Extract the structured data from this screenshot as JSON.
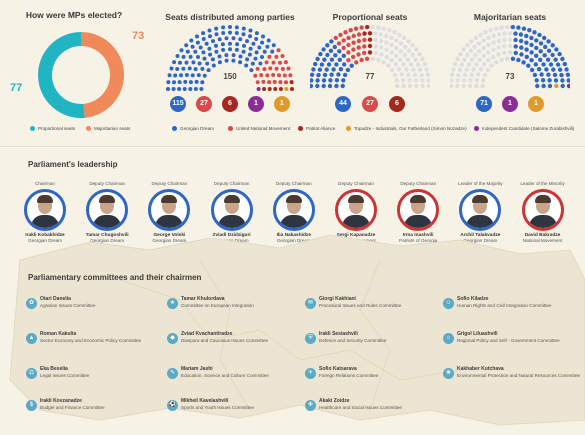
{
  "election": {
    "title": "How were MPs elected?",
    "prop_value": "77",
    "maj_value": "73",
    "legend_prop": "Proportional seats",
    "legend_maj": "Majoritarian seats",
    "colors": {
      "prop": "#21b5c3",
      "maj": "#f08a5a"
    }
  },
  "parties_chart": {
    "title": "Seats distributed among parties",
    "center": "150",
    "badges": [
      {
        "value": "115",
        "color": "#2e66c4"
      },
      {
        "value": "27",
        "color": "#d94a4a"
      },
      {
        "value": "6",
        "color": "#a5271f"
      },
      {
        "value": "1",
        "color": "#8a2e94"
      },
      {
        "value": "1",
        "color": "#e09a2c"
      }
    ],
    "seats": [
      115,
      27,
      6,
      1,
      1
    ]
  },
  "proportional_chart": {
    "title": "Proportional seats",
    "center": "77",
    "badges": [
      {
        "value": "44",
        "color": "#2e66c4"
      },
      {
        "value": "27",
        "color": "#d94a4a"
      },
      {
        "value": "6",
        "color": "#a5271f"
      }
    ],
    "seats": [
      44,
      27,
      6
    ]
  },
  "majoritarian_chart": {
    "title": "Majoritarian seats",
    "center": "73",
    "badges": [
      {
        "value": "71",
        "color": "#2e66c4"
      },
      {
        "value": "1",
        "color": "#8a2e94"
      },
      {
        "value": "1",
        "color": "#e09a2c"
      }
    ],
    "seats": [
      71,
      1,
      1
    ]
  },
  "party_legend": [
    {
      "label": "Georgian Dream",
      "color": "#2e66c4"
    },
    {
      "label": "United National Movement",
      "color": "#d94a4a"
    },
    {
      "label": "Patriot Aliance",
      "color": "#a5271f"
    },
    {
      "label": "Topadze - Industrials, Our Fatherland (Simon Nozadze)",
      "color": "#e09a2c"
    },
    {
      "label": "Independent Candidate (Salome Zurabishvili)",
      "color": "#8a2e94"
    }
  ],
  "leadership": {
    "title": "Parliament's leadership",
    "people": [
      {
        "role": "Chairman",
        "name": "Irakli Kobakhidze",
        "party": "Georgian Dream",
        "ring": "blue"
      },
      {
        "role": "Deputy Chairman",
        "name": "Tamar Chugoshvili",
        "party": "Georgian Dream",
        "ring": "blue"
      },
      {
        "role": "Deputy Chairman",
        "name": "George Volski",
        "party": "Georgian Dream",
        "ring": "blue"
      },
      {
        "role": "Deputy Chairman",
        "name": "Zviadi Dzidziguri",
        "party": "Georgian Dream",
        "ring": "blue"
      },
      {
        "role": "Deputy Chairman",
        "name": "Ilia Nakashidze",
        "party": "Georgian Dream",
        "ring": "blue"
      },
      {
        "role": "Deputy Chairman",
        "name": "Sergi Kapanadze",
        "party": "National Movement",
        "ring": "red"
      },
      {
        "role": "Deputy Chairman",
        "name": "Irma Inashvili",
        "party": "Patriots of Georgia",
        "ring": "red"
      },
      {
        "role": "Leader of the Majority",
        "name": "Archil Talakvadze",
        "party": "Georgian Dream",
        "ring": "blue"
      },
      {
        "role": "Leader of the Minority",
        "name": "David Bakradze",
        "party": "National Movement",
        "ring": "red"
      }
    ]
  },
  "committees": {
    "title": "Parliamentary committees and their chairmen",
    "items": [
      {
        "name": "Otari Danelia",
        "title": "Agrarian Issues Committee"
      },
      {
        "name": "Roman Kakulia",
        "title": "Sector Economy and Economic Policy Committee"
      },
      {
        "name": "Eka Beselia",
        "title": "Legal Issues Committee"
      },
      {
        "name": "Irakli Kovzanadze",
        "title": "Budget and Finance Committee"
      },
      {
        "name": "Tamar Khulordava",
        "title": "Committee on European Integration"
      },
      {
        "name": "Zviad Kvachantiradze",
        "title": "Diaspora and Caucasus Issues Committee"
      },
      {
        "name": "Mariam Jashi",
        "title": "Education, Science and Culture Committee"
      },
      {
        "name": "Mikheil Kavelashvili",
        "title": "Sports and Youth Issues Committee"
      },
      {
        "name": "Giorgi Kakhiani",
        "title": "Procedural Issues and Rules Committee"
      },
      {
        "name": "Irakli Sesiashvili",
        "title": "Defence and Security Committee"
      },
      {
        "name": "Sofio Katsarava",
        "title": "Foreign Relations Committee"
      },
      {
        "name": "Akaki Zoidze",
        "title": "Healthcare and Social Issues Committee"
      },
      {
        "name": "Sofio Kiladze",
        "title": "Human Rights and Civil Integration Committee"
      },
      {
        "name": "Grigol Liluashvili",
        "title": "Regional Policy and Self - Government Committee"
      },
      {
        "name": "Kakhaber Kutchava",
        "title": "Environmental Protection and Natural Resources Committee"
      },
      {
        "name": "",
        "title": ""
      }
    ]
  }
}
